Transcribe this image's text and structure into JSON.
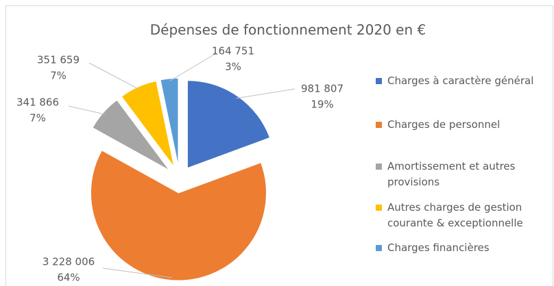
{
  "chart_data": {
    "type": "pie",
    "title": "Dépenses de fonctionnement 2020 en €",
    "categories": [
      "Charges à caractère général",
      "Charges de personnel",
      "Amortissement et autres provisions",
      "Autres charges de gestion courante & exceptionnelle",
      "Charges financières"
    ],
    "values": [
      981807,
      3228006,
      341866,
      351659,
      164751
    ],
    "value_labels": [
      "981 807",
      "3 228 006",
      "341 866",
      "351 659",
      "164 751"
    ],
    "percents": [
      19,
      64,
      7,
      7,
      3
    ],
    "percent_labels": [
      "19%",
      "64%",
      "7%",
      "7%",
      "3%"
    ],
    "colors": [
      "#4472c4",
      "#ed7d31",
      "#a5a5a5",
      "#ffc000",
      "#5b9bd5"
    ],
    "legend": "right"
  }
}
